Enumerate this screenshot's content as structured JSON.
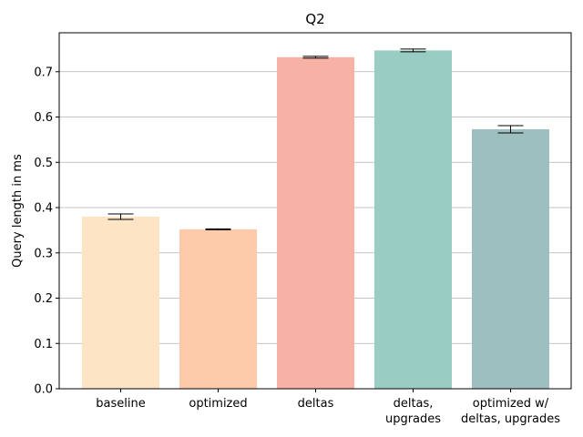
{
  "chart_data": {
    "type": "bar",
    "title": "Q2",
    "xlabel": "",
    "ylabel": "Query length in ms",
    "ylim": [
      0,
      0.786
    ],
    "yticks": [
      0.0,
      0.1,
      0.2,
      0.3,
      0.4,
      0.5,
      0.6,
      0.7
    ],
    "ytick_labels": [
      "0.0",
      "0.1",
      "0.2",
      "0.3",
      "0.4",
      "0.5",
      "0.6",
      "0.7"
    ],
    "grid": "horizontal",
    "categories": [
      [
        "baseline"
      ],
      [
        "optimized"
      ],
      [
        "deltas"
      ],
      [
        "deltas,",
        "upgrades"
      ],
      [
        "optimized w/",
        "deltas, upgrades"
      ]
    ],
    "values": [
      0.38,
      0.352,
      0.732,
      0.747,
      0.573
    ],
    "errors": [
      0.006,
      0.001,
      0.002,
      0.003,
      0.008
    ],
    "colors": [
      "#fce4c4",
      "#fdcbaa",
      "#f8b2a5",
      "#99cdc4",
      "#9dbfbf"
    ]
  }
}
